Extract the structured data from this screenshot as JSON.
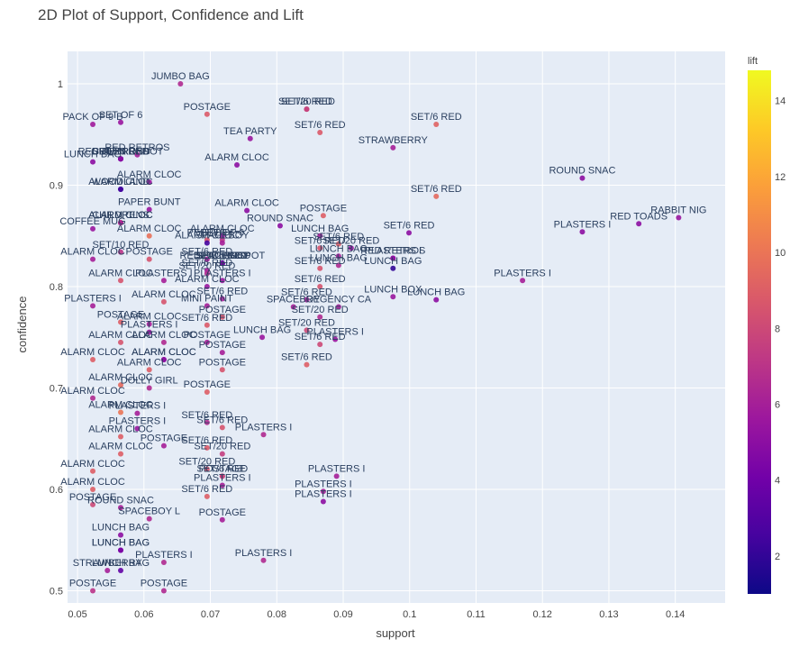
{
  "chart_data": {
    "type": "scatter",
    "title": "2D Plot of Support, Confidence and Lift",
    "xlabel": "support",
    "ylabel": "confidence",
    "xlim": [
      0.0485,
      0.1475
    ],
    "ylim": [
      0.488,
      1.032
    ],
    "x_ticks": [
      0.05,
      0.06,
      0.07,
      0.08,
      0.09,
      0.1,
      0.11,
      0.12,
      0.13,
      0.14
    ],
    "x_tick_labels": [
      "0.05",
      "0.06",
      "0.07",
      "0.08",
      "0.09",
      "0.1",
      "0.11",
      "0.12",
      "0.13",
      "0.14"
    ],
    "y_ticks": [
      0.5,
      0.6,
      0.7,
      0.8,
      0.9,
      1.0
    ],
    "y_tick_labels": [
      "0.5",
      "0.6",
      "0.7",
      "0.8",
      "0.9",
      "1"
    ],
    "grid": true,
    "plot_bg": "#e5ecf6",
    "colorbar": {
      "title": "lift",
      "range": [
        1,
        14.8
      ],
      "ticks": [
        2,
        4,
        6,
        8,
        10,
        12,
        14
      ],
      "tick_labels": [
        "2",
        "4",
        "6",
        "8",
        "10",
        "12",
        "14"
      ],
      "colorscale": [
        "#0d0887",
        "#46039f",
        "#7201a8",
        "#9c179e",
        "#bd3786",
        "#d8576b",
        "#ed7953",
        "#fb9f3a",
        "#fdca26",
        "#f0f921"
      ]
    },
    "points": [
      {
        "x": 0.0655,
        "y": 1.0,
        "lift": 6.5,
        "label": "JUMBO BAG"
      },
      {
        "x": 0.0695,
        "y": 0.97,
        "lift": 8.8,
        "label": "POSTAGE"
      },
      {
        "x": 0.0845,
        "y": 0.975,
        "lift": 9.0,
        "label": "SET/6 RED"
      },
      {
        "x": 0.0845,
        "y": 0.975,
        "lift": 7.5,
        "label": "SET/20 RED"
      },
      {
        "x": 0.0865,
        "y": 0.952,
        "lift": 8.8,
        "label": "SET/6 RED"
      },
      {
        "x": 0.104,
        "y": 0.96,
        "lift": 9.2,
        "label": "SET/6 RED"
      },
      {
        "x": 0.0523,
        "y": 0.96,
        "lift": 5.8,
        "label": "PACK OF 9 B"
      },
      {
        "x": 0.0565,
        "y": 0.962,
        "lift": 5.5,
        "label": "SET OF 6"
      },
      {
        "x": 0.076,
        "y": 0.946,
        "lift": 5.5,
        "label": "TEA PARTY"
      },
      {
        "x": 0.0975,
        "y": 0.937,
        "lift": 6.0,
        "label": "STRAWBERRY"
      },
      {
        "x": 0.059,
        "y": 0.93,
        "lift": 6.0,
        "label": "RED RETROS"
      },
      {
        "x": 0.0523,
        "y": 0.923,
        "lift": 5.0,
        "label": "LUNCH BAG"
      },
      {
        "x": 0.0565,
        "y": 0.926,
        "lift": 3.0,
        "label": "CHILDRENS"
      },
      {
        "x": 0.0565,
        "y": 0.926,
        "lift": 4.0,
        "label": "GREEN REG"
      },
      {
        "x": 0.0565,
        "y": 0.926,
        "lift": 4.5,
        "label": "SET/20 RED"
      },
      {
        "x": 0.0565,
        "y": 0.926,
        "lift": 5.0,
        "label": "RED RETROSPOT"
      },
      {
        "x": 0.074,
        "y": 0.92,
        "lift": 5.0,
        "label": "ALARM CLOC"
      },
      {
        "x": 0.0565,
        "y": 0.896,
        "lift": 2.0,
        "label": "WOODLAND"
      },
      {
        "x": 0.0565,
        "y": 0.896,
        "lift": 2.5,
        "label": "ALARM CLOC"
      },
      {
        "x": 0.0608,
        "y": 0.903,
        "lift": 5.5,
        "label": "ALARM CLOC"
      },
      {
        "x": 0.126,
        "y": 0.907,
        "lift": 5.0,
        "label": "ROUND SNAC"
      },
      {
        "x": 0.104,
        "y": 0.889,
        "lift": 9.5,
        "label": "SET/6 RED"
      },
      {
        "x": 0.0608,
        "y": 0.876,
        "lift": 5.5,
        "label": "PAPER BUNT"
      },
      {
        "x": 0.0755,
        "y": 0.875,
        "lift": 5.0,
        "label": "ALARM CLOC"
      },
      {
        "x": 0.087,
        "y": 0.87,
        "lift": 9.0,
        "label": "POSTAGE"
      },
      {
        "x": 0.0523,
        "y": 0.857,
        "lift": 5.5,
        "label": "COFFEE MUG"
      },
      {
        "x": 0.0565,
        "y": 0.863,
        "lift": 11.5,
        "label": "CHILDRENS"
      },
      {
        "x": 0.0565,
        "y": 0.863,
        "lift": 8.0,
        "label": "ALARM CLOC"
      },
      {
        "x": 0.0565,
        "y": 0.863,
        "lift": 6.0,
        "label": "ALARM CLOC"
      },
      {
        "x": 0.0805,
        "y": 0.86,
        "lift": 5.0,
        "label": "ROUND SNAC"
      },
      {
        "x": 0.0865,
        "y": 0.85,
        "lift": 6.0,
        "label": "LUNCH BAG"
      },
      {
        "x": 0.0999,
        "y": 0.853,
        "lift": 5.0,
        "label": "SET/6 RED"
      },
      {
        "x": 0.126,
        "y": 0.854,
        "lift": 5.0,
        "label": "PLASTERS I"
      },
      {
        "x": 0.1345,
        "y": 0.862,
        "lift": 5.0,
        "label": "RED TOADS"
      },
      {
        "x": 0.1405,
        "y": 0.868,
        "lift": 5.5,
        "label": "RABBIT NIG"
      },
      {
        "x": 0.0608,
        "y": 0.85,
        "lift": 9.8,
        "label": "ALARM CLOC"
      },
      {
        "x": 0.0695,
        "y": 0.846,
        "lift": 8.5,
        "label": "PEPPER"
      },
      {
        "x": 0.0695,
        "y": 0.843,
        "lift": 2.5,
        "label": "ALARM CLOC"
      },
      {
        "x": 0.0718,
        "y": 0.85,
        "lift": 5.5,
        "label": "ALARM CLOC"
      },
      {
        "x": 0.0718,
        "y": 0.846,
        "lift": 7.0,
        "label": "SET OF 6"
      },
      {
        "x": 0.0718,
        "y": 0.843,
        "lift": 6.0,
        "label": "SPACEBOY"
      },
      {
        "x": 0.0865,
        "y": 0.838,
        "lift": 8.5,
        "label": "SET/6 RED"
      },
      {
        "x": 0.0893,
        "y": 0.842,
        "lift": 9.0,
        "label": "SET/6 RED"
      },
      {
        "x": 0.0523,
        "y": 0.827,
        "lift": 6.0,
        "label": "ALARM CLOC"
      },
      {
        "x": 0.0565,
        "y": 0.834,
        "lift": 7.0,
        "label": "SET/10 RED"
      },
      {
        "x": 0.0608,
        "y": 0.827,
        "lift": 8.5,
        "label": "POSTAGE"
      },
      {
        "x": 0.0695,
        "y": 0.827,
        "lift": 6.0,
        "label": "SET/6 RED"
      },
      {
        "x": 0.0718,
        "y": 0.823,
        "lift": 1.5,
        "label": "SET/20 RED"
      },
      {
        "x": 0.0718,
        "y": 0.823,
        "lift": 2.5,
        "label": "RED RETROSPOT"
      },
      {
        "x": 0.0718,
        "y": 0.823,
        "lift": 3.5,
        "label": "SPACEBOY"
      },
      {
        "x": 0.0718,
        "y": 0.823,
        "lift": 4.5,
        "label": "SET/6 RED"
      },
      {
        "x": 0.0893,
        "y": 0.83,
        "lift": 6.0,
        "label": "LUNCH BAG"
      },
      {
        "x": 0.0912,
        "y": 0.838,
        "lift": 5.5,
        "label": "SET/20 RED"
      },
      {
        "x": 0.0975,
        "y": 0.828,
        "lift": 6.0,
        "label": "RED RETROS"
      },
      {
        "x": 0.0975,
        "y": 0.828,
        "lift": 5.0,
        "label": "PLASTERS I"
      },
      {
        "x": 0.0975,
        "y": 0.818,
        "lift": 2.0,
        "label": "LUNCH BAG"
      },
      {
        "x": 0.0565,
        "y": 0.806,
        "lift": 8.5,
        "label": "ALARM CLOC"
      },
      {
        "x": 0.063,
        "y": 0.806,
        "lift": 6.0,
        "label": "PLASTERS I"
      },
      {
        "x": 0.0718,
        "y": 0.806,
        "lift": 5.5,
        "label": "PLASTERS I"
      },
      {
        "x": 0.0695,
        "y": 0.816,
        "lift": 6.0,
        "label": "SET/6 RED"
      },
      {
        "x": 0.0695,
        "y": 0.813,
        "lift": 6.5,
        "label": "SET/20 RED"
      },
      {
        "x": 0.0865,
        "y": 0.818,
        "lift": 8.5,
        "label": "SET/6 RED"
      },
      {
        "x": 0.0893,
        "y": 0.821,
        "lift": 6.5,
        "label": "LUNCH BAG"
      },
      {
        "x": 0.117,
        "y": 0.806,
        "lift": 6.0,
        "label": "PLASTERS I"
      },
      {
        "x": 0.0695,
        "y": 0.8,
        "lift": 5.5,
        "label": "ALARM CLOC"
      },
      {
        "x": 0.0865,
        "y": 0.8,
        "lift": 8.5,
        "label": "SET/6 RED"
      },
      {
        "x": 0.0975,
        "y": 0.79,
        "lift": 5.5,
        "label": "LUNCH BOX"
      },
      {
        "x": 0.104,
        "y": 0.787,
        "lift": 5.0,
        "label": "LUNCH BAG"
      },
      {
        "x": 0.0523,
        "y": 0.781,
        "lift": 6.0,
        "label": "PLASTERS I"
      },
      {
        "x": 0.063,
        "y": 0.785,
        "lift": 8.5,
        "label": "ALARM CLOC"
      },
      {
        "x": 0.0718,
        "y": 0.788,
        "lift": 6.0,
        "label": "SET/6 RED"
      },
      {
        "x": 0.0695,
        "y": 0.781,
        "lift": 6.0,
        "label": "MINI PAINT"
      },
      {
        "x": 0.0718,
        "y": 0.77,
        "lift": 8.5,
        "label": "POSTAGE"
      },
      {
        "x": 0.0845,
        "y": 0.787,
        "lift": 6.0,
        "label": "SET/6 RED"
      },
      {
        "x": 0.0825,
        "y": 0.78,
        "lift": 6.0,
        "label": "SPACEBOY"
      },
      {
        "x": 0.0893,
        "y": 0.78,
        "lift": 6.0,
        "label": "REGENCY CA"
      },
      {
        "x": 0.0865,
        "y": 0.77,
        "lift": 6.5,
        "label": "SET/20 RED"
      },
      {
        "x": 0.0565,
        "y": 0.765,
        "lift": 9.0,
        "label": "POSTAGE"
      },
      {
        "x": 0.0608,
        "y": 0.763,
        "lift": 6.0,
        "label": "ALARM CLOC"
      },
      {
        "x": 0.0695,
        "y": 0.762,
        "lift": 8.8,
        "label": "SET/6 RED"
      },
      {
        "x": 0.0608,
        "y": 0.755,
        "lift": 5.5,
        "label": "PLASTERS I"
      },
      {
        "x": 0.0565,
        "y": 0.745,
        "lift": 8.5,
        "label": "ALARM CLOC"
      },
      {
        "x": 0.063,
        "y": 0.745,
        "lift": 6.5,
        "label": "ALARM CLOC"
      },
      {
        "x": 0.0695,
        "y": 0.745,
        "lift": 6.0,
        "label": "POSTAGE"
      },
      {
        "x": 0.0778,
        "y": 0.75,
        "lift": 5.5,
        "label": "LUNCH BAG"
      },
      {
        "x": 0.0845,
        "y": 0.757,
        "lift": 8.0,
        "label": "SET/20 RED"
      },
      {
        "x": 0.0865,
        "y": 0.743,
        "lift": 8.0,
        "label": "SET/6 RED"
      },
      {
        "x": 0.0888,
        "y": 0.748,
        "lift": 5.5,
        "label": "PLASTERS I"
      },
      {
        "x": 0.0718,
        "y": 0.735,
        "lift": 6.0,
        "label": "POSTAGE"
      },
      {
        "x": 0.0523,
        "y": 0.728,
        "lift": 9.0,
        "label": "ALARM CLOC"
      },
      {
        "x": 0.063,
        "y": 0.728,
        "lift": 6.0,
        "label": "ALARM CLOC"
      },
      {
        "x": 0.063,
        "y": 0.728,
        "lift": 5.0,
        "label": "ALARM CLOC"
      },
      {
        "x": 0.0608,
        "y": 0.718,
        "lift": 9.0,
        "label": "ALARM CLOC"
      },
      {
        "x": 0.0718,
        "y": 0.718,
        "lift": 8.5,
        "label": "POSTAGE"
      },
      {
        "x": 0.0845,
        "y": 0.723,
        "lift": 9.0,
        "label": "SET/6 RED"
      },
      {
        "x": 0.0565,
        "y": 0.703,
        "lift": 9.5,
        "label": "ALARM CLOC"
      },
      {
        "x": 0.0608,
        "y": 0.7,
        "lift": 6.5,
        "label": "DOLLY GIRL"
      },
      {
        "x": 0.0695,
        "y": 0.696,
        "lift": 9.0,
        "label": "POSTAGE"
      },
      {
        "x": 0.0523,
        "y": 0.69,
        "lift": 6.5,
        "label": "ALARM CLOC"
      },
      {
        "x": 0.0565,
        "y": 0.676,
        "lift": 10.0,
        "label": "ALARM CLOC"
      },
      {
        "x": 0.059,
        "y": 0.675,
        "lift": 6.0,
        "label": "PLASTERS I"
      },
      {
        "x": 0.059,
        "y": 0.66,
        "lift": 5.5,
        "label": "PLASTERS I"
      },
      {
        "x": 0.0695,
        "y": 0.666,
        "lift": 6.5,
        "label": "SET/6 RED"
      },
      {
        "x": 0.0718,
        "y": 0.661,
        "lift": 8.5,
        "label": "SET/6 RED"
      },
      {
        "x": 0.078,
        "y": 0.654,
        "lift": 6.5,
        "label": "PLASTERS I"
      },
      {
        "x": 0.0565,
        "y": 0.652,
        "lift": 9.0,
        "label": "ALARM CLOC"
      },
      {
        "x": 0.063,
        "y": 0.643,
        "lift": 6.0,
        "label": "POSTAGE"
      },
      {
        "x": 0.0695,
        "y": 0.641,
        "lift": 8.8,
        "label": "SET/6 RED"
      },
      {
        "x": 0.0718,
        "y": 0.635,
        "lift": 7.5,
        "label": "SET/20 RED"
      },
      {
        "x": 0.0565,
        "y": 0.635,
        "lift": 9.0,
        "label": "ALARM CLOC"
      },
      {
        "x": 0.0523,
        "y": 0.618,
        "lift": 9.0,
        "label": "ALARM CLOC"
      },
      {
        "x": 0.0695,
        "y": 0.62,
        "lift": 8.5,
        "label": "SET/20 RED"
      },
      {
        "x": 0.0718,
        "y": 0.613,
        "lift": 8.5,
        "label": "SET/6 RED"
      },
      {
        "x": 0.0718,
        "y": 0.613,
        "lift": 7.5,
        "label": "POSTAGE"
      },
      {
        "x": 0.0718,
        "y": 0.604,
        "lift": 6.0,
        "label": "PLASTERS I"
      },
      {
        "x": 0.089,
        "y": 0.613,
        "lift": 6.0,
        "label": "PLASTERS I"
      },
      {
        "x": 0.0695,
        "y": 0.593,
        "lift": 9.0,
        "label": "SET/6 RED"
      },
      {
        "x": 0.0523,
        "y": 0.6,
        "lift": 9.0,
        "label": "ALARM CLOC"
      },
      {
        "x": 0.0523,
        "y": 0.585,
        "lift": 8.0,
        "label": "POSTAGE"
      },
      {
        "x": 0.0565,
        "y": 0.582,
        "lift": 6.0,
        "label": "ROUND SNAC"
      },
      {
        "x": 0.087,
        "y": 0.598,
        "lift": 6.0,
        "label": "PLASTERS I"
      },
      {
        "x": 0.087,
        "y": 0.588,
        "lift": 5.0,
        "label": "PLASTERS I"
      },
      {
        "x": 0.0608,
        "y": 0.571,
        "lift": 6.5,
        "label": "SPACEBOY L"
      },
      {
        "x": 0.0718,
        "y": 0.57,
        "lift": 6.0,
        "label": "POSTAGE"
      },
      {
        "x": 0.0565,
        "y": 0.555,
        "lift": 5.0,
        "label": "LUNCH BAG"
      },
      {
        "x": 0.0565,
        "y": 0.54,
        "lift": 3.5,
        "label": "LUNCH BAG"
      },
      {
        "x": 0.0565,
        "y": 0.54,
        "lift": 4.5,
        "label": "LUNCH BAG"
      },
      {
        "x": 0.0545,
        "y": 0.52,
        "lift": 6.0,
        "label": "STRAWBERRY"
      },
      {
        "x": 0.0565,
        "y": 0.52,
        "lift": 3.5,
        "label": "LUNCH BAG"
      },
      {
        "x": 0.063,
        "y": 0.528,
        "lift": 6.5,
        "label": "PLASTERS I"
      },
      {
        "x": 0.078,
        "y": 0.53,
        "lift": 6.5,
        "label": "PLASTERS I"
      },
      {
        "x": 0.0523,
        "y": 0.5,
        "lift": 7.0,
        "label": "POSTAGE"
      },
      {
        "x": 0.063,
        "y": 0.5,
        "lift": 6.5,
        "label": "POSTAGE"
      }
    ]
  }
}
